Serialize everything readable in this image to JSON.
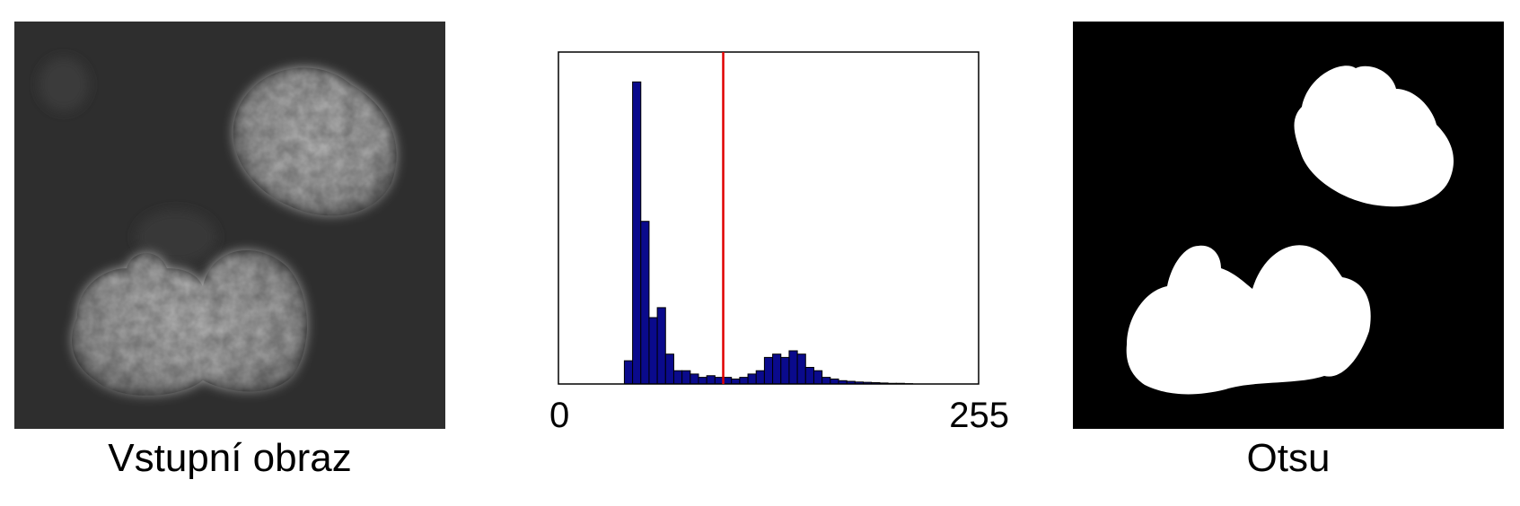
{
  "panels": {
    "input": {
      "caption": "Vstupní obraz"
    },
    "otsu": {
      "caption": "Otsu"
    }
  },
  "colors": {
    "bar_fill": "#0a0a8c",
    "threshold_line": "#e00000",
    "otsu_background": "#000000",
    "otsu_foreground": "#ffffff"
  },
  "chart_data": {
    "type": "bar",
    "title": "",
    "xlabel": "",
    "ylabel": "",
    "x_tick_labels": [
      "0",
      "255"
    ],
    "xlim": [
      0,
      255
    ],
    "ylim": [
      0,
      1
    ],
    "threshold": 100,
    "bin_start": [
      40,
      45,
      50,
      55,
      60,
      65,
      70,
      75,
      80,
      85,
      90,
      95,
      100,
      105,
      110,
      115,
      120,
      125,
      130,
      135,
      140,
      145,
      150,
      155,
      160,
      165,
      170,
      175,
      180,
      185,
      190,
      195,
      200,
      205,
      210
    ],
    "bin_width": 5,
    "values": [
      0.07,
      0.91,
      0.49,
      0.2,
      0.23,
      0.09,
      0.04,
      0.04,
      0.03,
      0.02,
      0.025,
      0.02,
      0.02,
      0.015,
      0.02,
      0.03,
      0.04,
      0.08,
      0.09,
      0.08,
      0.1,
      0.09,
      0.05,
      0.04,
      0.02,
      0.015,
      0.01,
      0.008,
      0.006,
      0.005,
      0.004,
      0.003,
      0.002,
      0.002,
      0.001
    ]
  }
}
